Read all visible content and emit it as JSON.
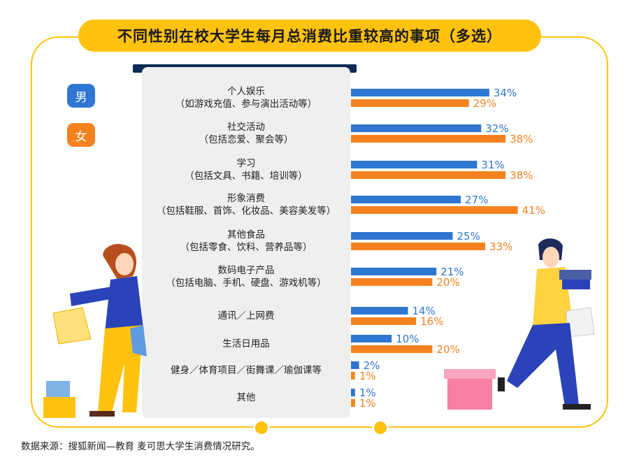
{
  "title": "不同性别在校大学生每月总消费比重较高的事项（多选）",
  "source": "数据来源：搜狐新闻—教育 麦可思大学生消费情况研究。",
  "legend": {
    "male": "男",
    "female": "女"
  },
  "colors": {
    "male": "#2f76d2",
    "female": "#f5821f",
    "accent": "#ffc20e"
  },
  "chart_data": {
    "type": "bar",
    "orientation": "horizontal",
    "title": "不同性别在校大学生每月总消费比重较高的事项（多选）",
    "categories": [
      {
        "label": "个人娱乐",
        "sub": "（如游戏充值、参与演出活动等）"
      },
      {
        "label": "社交活动",
        "sub": "（包括恋爱、聚会等）"
      },
      {
        "label": "学习",
        "sub": "（包括文具、书籍、培训等）"
      },
      {
        "label": "形象消费",
        "sub": "（包括鞋服、首饰、化妆品、美容美发等）"
      },
      {
        "label": "其他食品",
        "sub": "（包括零食、饮料、营养品等）"
      },
      {
        "label": "数码电子产品",
        "sub": "（包括电脑、手机、硬盘、游戏机等）"
      },
      {
        "label": "通讯／上网费",
        "sub": ""
      },
      {
        "label": "生活日用品",
        "sub": ""
      },
      {
        "label": "健身／体育项目／街舞课／瑜伽课等",
        "sub": ""
      },
      {
        "label": "其他",
        "sub": ""
      }
    ],
    "series": [
      {
        "name": "男",
        "values": [
          34,
          32,
          31,
          27,
          25,
          21,
          14,
          10,
          2,
          1
        ]
      },
      {
        "name": "女",
        "values": [
          29,
          38,
          38,
          41,
          33,
          20,
          16,
          20,
          1,
          1
        ]
      }
    ],
    "unit": "%",
    "legend_position": "left"
  }
}
